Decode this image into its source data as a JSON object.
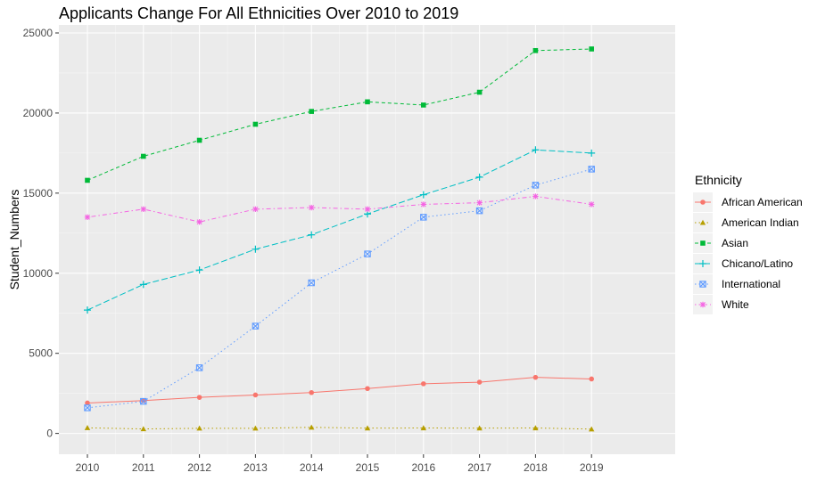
{
  "chart_data": {
    "type": "line",
    "title": "Applicants Change For All Ethnicities Over 2010 to 2019",
    "xlabel": "",
    "ylabel": "Student_Numbers",
    "x": [
      "2010",
      "2011",
      "2012",
      "2013",
      "2014",
      "2015",
      "2016",
      "2017",
      "2018",
      "2019"
    ],
    "ylim": [
      -1300,
      25500
    ],
    "yticks": [
      0,
      5000,
      10000,
      15000,
      20000,
      25000
    ],
    "grid": true,
    "legend_title": "Ethnicity",
    "legend_position": "right",
    "series": [
      {
        "name": "African American",
        "color": "#F8766D",
        "marker": "circle",
        "dash": "solid",
        "values": [
          1900,
          2050,
          2250,
          2400,
          2550,
          2800,
          3100,
          3200,
          3500,
          3400
        ]
      },
      {
        "name": "American Indian",
        "color": "#B79F00",
        "marker": "triangle",
        "dash": "dotted",
        "values": [
          350,
          280,
          320,
          320,
          380,
          330,
          340,
          330,
          340,
          270
        ]
      },
      {
        "name": "Asian",
        "color": "#00BA38",
        "marker": "square",
        "dash": "dashed",
        "values": [
          15800,
          17300,
          18300,
          19300,
          20100,
          20700,
          20500,
          21300,
          23900,
          24000
        ]
      },
      {
        "name": "Chicano/Latino",
        "color": "#00BFC4",
        "marker": "plus",
        "dash": "longdash",
        "values": [
          7700,
          9300,
          10200,
          11500,
          12400,
          13700,
          14900,
          16000,
          17700,
          17500
        ]
      },
      {
        "name": "International",
        "color": "#619CFF",
        "marker": "boxx",
        "dash": "dotted",
        "values": [
          1600,
          2000,
          4100,
          6700,
          9400,
          11200,
          13500,
          13900,
          15500,
          16500
        ]
      },
      {
        "name": "White",
        "color": "#F564E3",
        "marker": "asterisk",
        "dash": "dotdash",
        "values": [
          13500,
          14000,
          13200,
          14000,
          14100,
          14000,
          14300,
          14400,
          14800,
          14300
        ]
      }
    ]
  }
}
